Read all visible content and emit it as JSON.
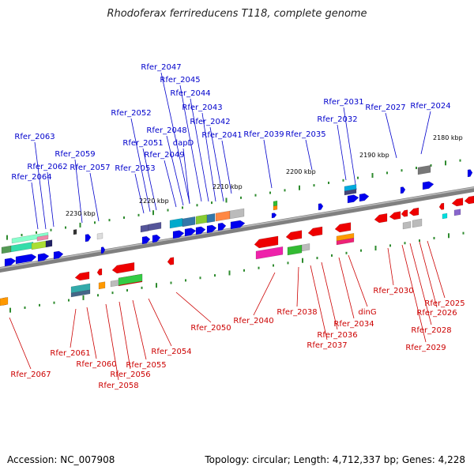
{
  "title": "Rhodoferax ferrireducens T118, complete genome",
  "footer": {
    "accession": "Accession: NC_007908",
    "summary": "Topology: circular; Length: 4,712,337 bp; Genes: 4,228"
  },
  "scale_labels": [
    "2180 kbp",
    "2190 kbp",
    "2200 kbp",
    "2210 kbp",
    "2220 kbp",
    "2230 kbp"
  ],
  "colors": {
    "forward_label": "#0000cc",
    "reverse_label": "#cc0000",
    "forward_gene": "#0000ee",
    "reverse_gene": "#ee0000",
    "backbone": "#808080",
    "tick": "#2e8b2e"
  },
  "forward_genes": [
    "Rfer_2024",
    "Rfer_2027",
    "Rfer_2031",
    "Rfer_2032",
    "Rfer_2035",
    "Rfer_2039",
    "Rfer_2041",
    "Rfer_2042",
    "Rfer_2043",
    "Rfer_2044",
    "Rfer_2045",
    "Rfer_2047",
    "dapD",
    "Rfer_2048",
    "Rfer_2049",
    "Rfer_2051",
    "Rfer_2052",
    "Rfer_2053",
    "Rfer_2057",
    "Rfer_2059",
    "Rfer_2062",
    "Rfer_2063",
    "Rfer_2064"
  ],
  "reverse_genes": [
    "Rfer_2025",
    "Rfer_2026",
    "Rfer_2028",
    "Rfer_2029",
    "Rfer_2030",
    "dinG",
    "Rfer_2034",
    "Rfer_2036",
    "Rfer_2037",
    "Rfer_2038",
    "Rfer_2040",
    "Rfer_2050",
    "Rfer_2054",
    "Rfer_2055",
    "Rfer_2056",
    "Rfer_2058",
    "Rfer_2060",
    "Rfer_2061",
    "Rfer_2067"
  ]
}
